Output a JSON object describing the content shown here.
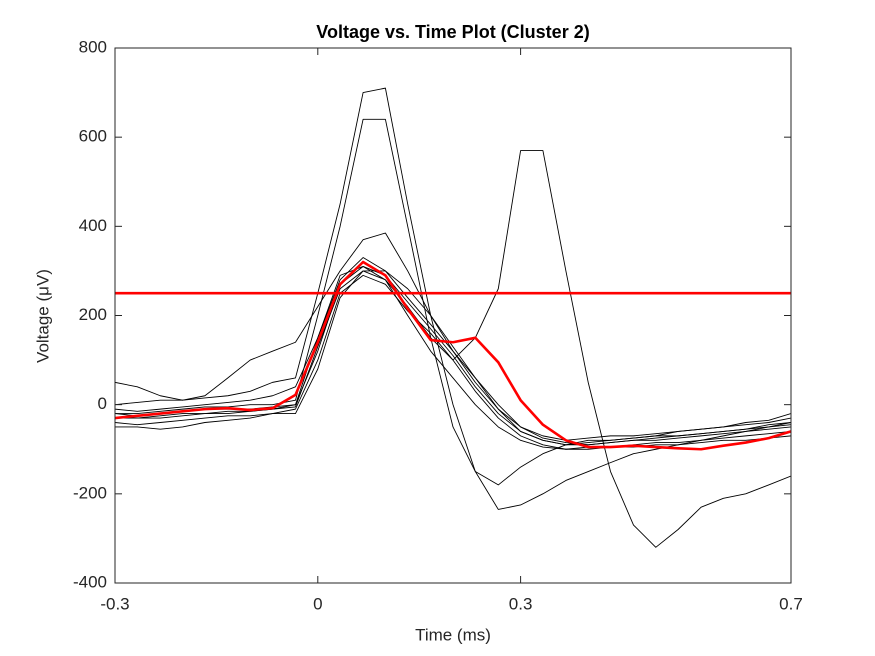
{
  "chart_data": {
    "type": "line",
    "title": "Voltage vs. Time Plot (Cluster 2)",
    "x_label": "Time (ms)",
    "y_label": "Voltage (μV)",
    "x": [
      -0.3,
      -0.267,
      -0.233,
      -0.2,
      -0.167,
      -0.133,
      -0.1,
      -0.067,
      -0.033,
      0,
      0.033,
      0.067,
      0.1,
      0.133,
      0.167,
      0.2,
      0.233,
      0.267,
      0.3,
      0.333,
      0.367,
      0.4,
      0.433,
      0.467,
      0.5,
      0.533,
      0.567,
      0.6,
      0.633,
      0.667,
      0.7
    ],
    "series": [
      {
        "color": "#000000",
        "values": [
          -20,
          -25,
          -20,
          -15,
          -10,
          -10,
          -10,
          -5,
          0,
          120,
          270,
          310,
          290,
          230,
          170,
          110,
          40,
          -20,
          -60,
          -80,
          -90,
          -90,
          -85,
          -80,
          -80,
          -75,
          -70,
          -65,
          -60,
          -55,
          -50
        ]
      },
      {
        "color": "#000000",
        "values": [
          -10,
          -15,
          -10,
          -5,
          0,
          5,
          10,
          20,
          40,
          150,
          280,
          330,
          300,
          240,
          180,
          120,
          50,
          -10,
          -50,
          -75,
          -85,
          -90,
          -85,
          -80,
          -75,
          -70,
          -65,
          -60,
          -55,
          -45,
          -40
        ]
      },
      {
        "color": "#000000",
        "values": [
          -40,
          -45,
          -40,
          -35,
          -30,
          -25,
          -25,
          -20,
          -10,
          100,
          250,
          290,
          270,
          210,
          160,
          100,
          30,
          -30,
          -70,
          -90,
          -100,
          -95,
          -95,
          -90,
          -85,
          -85,
          -80,
          -75,
          -70,
          -65,
          -60
        ]
      },
      {
        "color": "#000000",
        "values": [
          50,
          40,
          20,
          10,
          20,
          60,
          100,
          120,
          140,
          220,
          300,
          370,
          385,
          300,
          200,
          120,
          60,
          0,
          -50,
          -70,
          -80,
          -75,
          -70,
          -70,
          -65,
          -60,
          -55,
          -50,
          -45,
          -40,
          -30
        ]
      },
      {
        "color": "#000000",
        "values": [
          -20,
          -20,
          -15,
          -10,
          -5,
          -5,
          0,
          0,
          10,
          200,
          400,
          640,
          640,
          400,
          150,
          -50,
          -150,
          -180,
          -140,
          -110,
          -90,
          -80,
          -80,
          -75,
          -70,
          -70,
          -65,
          -60,
          -55,
          -50,
          -45
        ]
      },
      {
        "color": "#000000",
        "values": [
          0,
          5,
          10,
          10,
          15,
          20,
          30,
          50,
          60,
          250,
          450,
          700,
          710,
          450,
          200,
          0,
          -150,
          -235,
          -225,
          -200,
          -170,
          -150,
          -130,
          -110,
          -100,
          -90,
          -80,
          -70,
          -60,
          -50,
          -40
        ]
      },
      {
        "color": "#000000",
        "values": [
          -30,
          -30,
          -25,
          -20,
          -20,
          -15,
          -15,
          -10,
          0,
          150,
          290,
          310,
          280,
          220,
          150,
          100,
          150,
          260,
          570,
          570,
          300,
          50,
          -150,
          -270,
          -320,
          -280,
          -230,
          -210,
          -200,
          -180,
          -160
        ]
      },
      {
        "color": "#000000",
        "values": [
          -50,
          -50,
          -55,
          -50,
          -40,
          -35,
          -30,
          -20,
          -20,
          80,
          240,
          300,
          280,
          200,
          120,
          60,
          0,
          -50,
          -80,
          -95,
          -100,
          -100,
          -95,
          -95,
          -90,
          -90,
          -85,
          -80,
          -80,
          -75,
          -70
        ]
      },
      {
        "color": "#000000",
        "values": [
          -30,
          -30,
          -30,
          -25,
          -20,
          -20,
          -15,
          -10,
          -5,
          130,
          260,
          300,
          300,
          260,
          200,
          130,
          60,
          -10,
          -60,
          -80,
          -90,
          -85,
          -80,
          -75,
          -70,
          -60,
          -55,
          -50,
          -40,
          -35,
          -20
        ]
      },
      {
        "color": "#ff0000",
        "values": [
          -30,
          -25,
          -20,
          -15,
          -10,
          -8,
          -12,
          -8,
          22,
          140,
          270,
          320,
          290,
          215,
          145,
          140,
          150,
          95,
          10,
          -45,
          -80,
          -95,
          -95,
          -92,
          -95,
          -98,
          -100,
          -92,
          -85,
          -75,
          -60
        ]
      }
    ],
    "hlines": [
      {
        "value": 250,
        "color": "#ff0000"
      }
    ],
    "xlim": [
      -0.3,
      0.7
    ],
    "xticks": [
      -0.3,
      0,
      0.3,
      0.7
    ],
    "ylim": [
      -400,
      800
    ],
    "yticks": [
      -400,
      -200,
      0,
      200,
      400,
      600,
      800
    ],
    "grid": false
  }
}
